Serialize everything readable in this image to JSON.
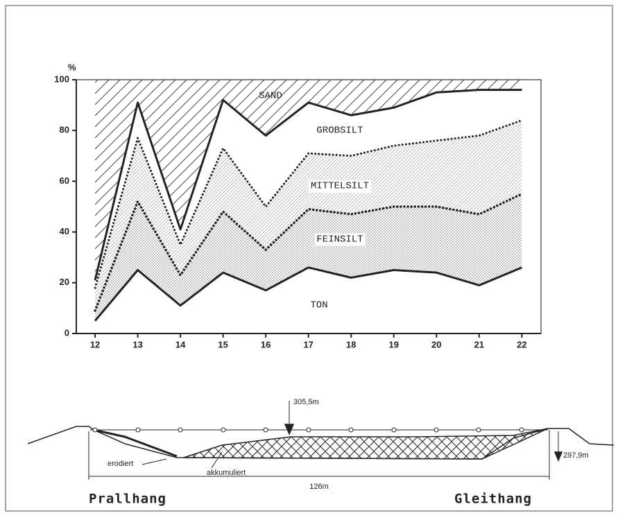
{
  "chart_data": {
    "type": "stacked-area",
    "y_label": "%",
    "x": [
      12,
      13,
      14,
      15,
      16,
      17,
      18,
      19,
      20,
      21,
      22
    ],
    "series": [
      {
        "name": "TON",
        "color": "#ffffff",
        "values": [
          5,
          25,
          11,
          24,
          17,
          26,
          22,
          25,
          24,
          19,
          26
        ]
      },
      {
        "name": "FEINSILT",
        "color": "#9a9a9a",
        "values": [
          4,
          27,
          12,
          24,
          16,
          23,
          25,
          25,
          26,
          28,
          29
        ]
      },
      {
        "name": "MITTELSILT",
        "color": "#b0b0b0",
        "values": [
          9,
          25,
          12,
          25,
          17,
          22,
          23,
          24,
          26,
          31,
          29
        ]
      },
      {
        "name": "GROBSILT",
        "color": "#ffffff",
        "values": [
          3,
          14,
          6,
          19,
          28,
          20,
          16,
          15,
          19,
          18,
          12
        ]
      },
      {
        "name": "SAND",
        "color": "#444444",
        "values": [
          79,
          9,
          59,
          8,
          22,
          9,
          14,
          11,
          5,
          4,
          4
        ]
      }
    ],
    "xlim": [
      11.56,
      22.45
    ],
    "ylim": [
      0,
      100
    ],
    "xticks": [
      12,
      13,
      14,
      15,
      16,
      17,
      18,
      19,
      20,
      21,
      22
    ],
    "yticks": [
      0,
      20,
      40,
      60,
      80,
      100
    ]
  },
  "profile": {
    "height_top": "305,5m",
    "height_bottom": "297,9m",
    "eroded": "erodiert",
    "accumulated": "akkumuliert",
    "width": "126m",
    "left_bank": "Prallhang",
    "right_bank": "Gleithang"
  }
}
